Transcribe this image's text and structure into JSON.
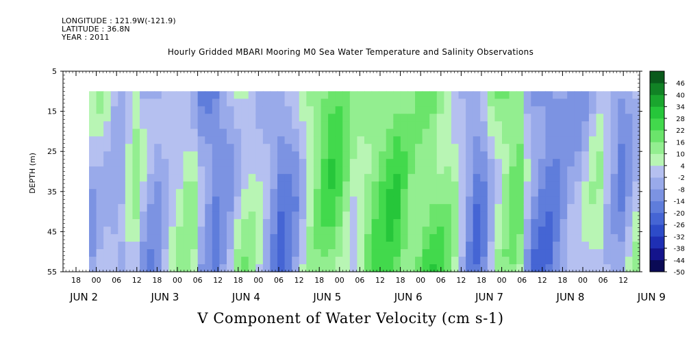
{
  "header": {
    "longitude": "LONGITUDE : 121.9W(-121.9)",
    "latitude": "LATITUDE : 36.8N",
    "year": "YEAR : 2011"
  },
  "chart_data": {
    "type": "heatmap",
    "title": "Hourly Gridded MBARI Mooring M0 Sea Water Temperature and Salinity Observations",
    "xlabel": "V Component of Water Velocity (cm s-1)",
    "ylabel": "DEPTH (m)",
    "ylim": [
      55,
      5
    ],
    "y_ticks": [
      5,
      15,
      25,
      35,
      45,
      55
    ],
    "data_depth_range": [
      10,
      55
    ],
    "x_hour_ticks": [
      "18",
      "00",
      "06",
      "12",
      "18",
      "00",
      "06",
      "12",
      "18",
      "00",
      "06",
      "12",
      "18",
      "00",
      "06",
      "12",
      "18",
      "00",
      "06",
      "12",
      "18",
      "00",
      "06",
      "12",
      "18",
      "00",
      "06",
      "12",
      "18",
      "00",
      "06",
      "12"
    ],
    "x_day_labels": [
      "JUN  2",
      "JUN  3",
      "JUN  4",
      "JUN  5",
      "JUN  6",
      "JUN  7",
      "JUN  8",
      "JUN  9"
    ],
    "colorbar": {
      "levels": [
        -50,
        -44,
        -38,
        -32,
        -26,
        -20,
        -14,
        -8,
        -2,
        4,
        10,
        16,
        22,
        28,
        34,
        40,
        46
      ],
      "colors": [
        "#0a0a55",
        "#14148c",
        "#1e2fb4",
        "#2d4bc8",
        "#4565d4",
        "#5f7ddb",
        "#7c93e2",
        "#99aaea",
        "#b5c0f0",
        "#b8f5b4",
        "#93ee90",
        "#6be46b",
        "#42d94c",
        "#26c63a",
        "#1aa62e",
        "#118225",
        "#0a5a1b"
      ]
    },
    "v_field_columns_desc": "column means from 10m to 55m in cm/s",
    "v_field": [
      -1,
      3,
      2,
      -3,
      -5,
      2,
      6,
      -4,
      -8,
      -9,
      -3,
      1,
      3,
      6,
      3,
      -8,
      -12,
      -14,
      -9,
      -3,
      5,
      9,
      8,
      4,
      -2,
      -8,
      -13,
      -10,
      -5,
      3,
      9,
      14,
      18,
      20,
      17,
      11,
      5,
      7,
      12,
      15,
      18,
      20,
      21,
      17,
      14,
      16,
      19,
      20,
      18,
      15,
      9,
      2,
      -7,
      -13,
      -8,
      3,
      10,
      14,
      16,
      14,
      -4,
      -13,
      -16,
      -17,
      -14,
      -10,
      -7,
      -6,
      -3,
      2,
      5,
      -1,
      -5,
      -9,
      -3,
      4
    ]
  }
}
